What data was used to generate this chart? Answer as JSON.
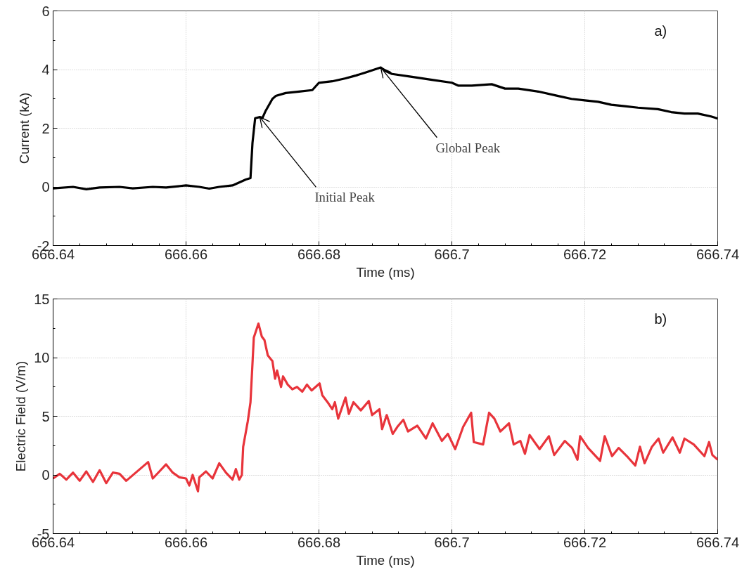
{
  "chart_data": [
    {
      "type": "line",
      "xlabel": "Time (ms)",
      "ylabel": "Current (kA)",
      "xlim": [
        666.64,
        666.74
      ],
      "ylim": [
        -2,
        6
      ],
      "xticks": [
        666.64,
        666.66,
        666.68,
        666.7,
        666.72,
        666.74
      ],
      "yticks": [
        -2,
        0,
        2,
        4,
        6
      ],
      "grid": true,
      "annotations": [
        "a)",
        {
          "text": "Initial Peak",
          "x": 666.6711,
          "y": 2.38
        },
        {
          "text": "Global Peak",
          "x": 666.6893,
          "y": 4.07
        }
      ],
      "x": [
        666.64,
        666.643,
        666.645,
        666.647,
        666.65,
        666.652,
        666.655,
        666.657,
        666.66,
        666.662,
        666.6635,
        666.665,
        666.667,
        666.668,
        666.669,
        666.6697,
        666.67,
        666.6704,
        666.6711,
        666.6715,
        666.672,
        666.673,
        666.6735,
        666.675,
        666.677,
        666.679,
        666.68,
        666.682,
        666.684,
        666.6856,
        666.687,
        666.6893,
        666.69,
        666.691,
        666.694,
        666.697,
        666.7,
        666.701,
        666.703,
        666.706,
        666.708,
        666.71,
        666.713,
        666.716,
        666.718,
        666.72,
        666.722,
        666.724,
        666.726,
        666.728,
        666.731,
        666.733,
        666.735,
        666.737,
        666.739,
        666.74
      ],
      "series": [
        {
          "color": "#000000",
          "values": [
            -0.05,
            0.0,
            -0.08,
            -0.02,
            0.0,
            -0.05,
            0.0,
            -0.02,
            0.05,
            0.0,
            -0.06,
            0.0,
            0.05,
            0.15,
            0.25,
            0.3,
            1.5,
            2.34,
            2.38,
            2.35,
            2.6,
            3.0,
            3.1,
            3.2,
            3.25,
            3.3,
            3.55,
            3.6,
            3.7,
            3.8,
            3.9,
            4.07,
            3.95,
            3.85,
            3.75,
            3.65,
            3.55,
            3.45,
            3.45,
            3.5,
            3.35,
            3.35,
            3.25,
            3.1,
            3.0,
            2.95,
            2.9,
            2.8,
            2.75,
            2.7,
            2.65,
            2.55,
            2.5,
            2.5,
            2.4,
            2.33
          ]
        }
      ]
    },
    {
      "type": "line",
      "xlabel": "Time (ms)",
      "ylabel": "Electric Field (V/m)",
      "xlim": [
        666.64,
        666.74
      ],
      "ylim": [
        -5,
        15
      ],
      "xticks": [
        666.64,
        666.66,
        666.68,
        666.7,
        666.72,
        666.74
      ],
      "yticks": [
        -5,
        0,
        5,
        10,
        15
      ],
      "grid": true,
      "annotations": [
        "b)"
      ],
      "x": [
        666.64,
        666.641,
        666.642,
        666.643,
        666.644,
        666.645,
        666.646,
        666.647,
        666.648,
        666.649,
        666.65,
        666.651,
        666.6543,
        666.655,
        666.656,
        666.657,
        666.658,
        666.659,
        666.66,
        666.6605,
        666.661,
        666.6618,
        666.662,
        666.663,
        666.664,
        666.665,
        666.666,
        666.667,
        666.6675,
        666.668,
        666.6684,
        666.6686,
        666.6693,
        666.6697,
        666.6702,
        666.6709,
        666.6714,
        666.6718,
        666.6723,
        666.673,
        666.6734,
        666.6737,
        666.6743,
        666.6746,
        666.6753,
        666.676,
        666.6767,
        666.6775,
        666.6782,
        666.6789,
        666.6801,
        666.6805,
        666.6813,
        666.682,
        666.6824,
        666.6829,
        666.684,
        666.6845,
        666.6852,
        666.6863,
        666.6875,
        666.688,
        666.6891,
        666.6895,
        666.6902,
        666.6911,
        666.6918,
        666.6927,
        666.6934,
        666.6948,
        666.6961,
        666.6971,
        666.6985,
        666.6994,
        666.7005,
        666.7017,
        666.7029,
        666.7033,
        666.7047,
        666.7056,
        666.7064,
        666.7073,
        666.7086,
        666.7093,
        666.7103,
        666.711,
        666.7117,
        666.7132,
        666.7146,
        666.7154,
        666.717,
        666.7181,
        666.7189,
        666.7193,
        666.7205,
        666.7223,
        666.723,
        666.7241,
        666.7251,
        666.7265,
        666.7276,
        666.7283,
        666.729,
        666.7301,
        666.7311,
        666.7318,
        666.7332,
        666.7343,
        666.735,
        666.7364,
        666.738,
        666.7387,
        666.7392,
        666.74
      ],
      "series": [
        {
          "color": "#e8343b",
          "values": [
            -0.3,
            0.1,
            -0.4,
            0.2,
            -0.5,
            0.3,
            -0.6,
            0.4,
            -0.7,
            0.2,
            0.1,
            -0.5,
            1.1,
            -0.3,
            0.3,
            0.9,
            0.2,
            -0.2,
            -0.3,
            -0.9,
            0.0,
            -1.4,
            -0.2,
            0.3,
            -0.3,
            1.0,
            0.2,
            -0.4,
            0.5,
            -0.4,
            0.0,
            2.4,
            4.6,
            6.2,
            11.7,
            12.9,
            11.8,
            11.5,
            10.2,
            9.7,
            8.2,
            8.9,
            7.5,
            8.4,
            7.7,
            7.3,
            7.5,
            7.1,
            7.7,
            7.2,
            7.8,
            6.8,
            6.2,
            5.6,
            6.2,
            4.8,
            6.6,
            5.2,
            6.2,
            5.5,
            6.3,
            5.1,
            5.6,
            3.9,
            5.1,
            3.5,
            4.1,
            4.7,
            3.7,
            4.2,
            3.1,
            4.4,
            2.9,
            3.5,
            2.2,
            4.1,
            5.3,
            2.8,
            2.6,
            5.3,
            4.8,
            3.7,
            4.4,
            2.6,
            2.9,
            1.8,
            3.4,
            2.2,
            3.3,
            1.7,
            2.9,
            2.3,
            1.3,
            3.3,
            2.3,
            1.2,
            3.3,
            1.6,
            2.3,
            1.5,
            0.8,
            2.4,
            1.0,
            2.4,
            3.1,
            1.9,
            3.2,
            1.9,
            3.1,
            2.6,
            1.6,
            2.8,
            1.7,
            1.3
          ]
        }
      ]
    }
  ]
}
